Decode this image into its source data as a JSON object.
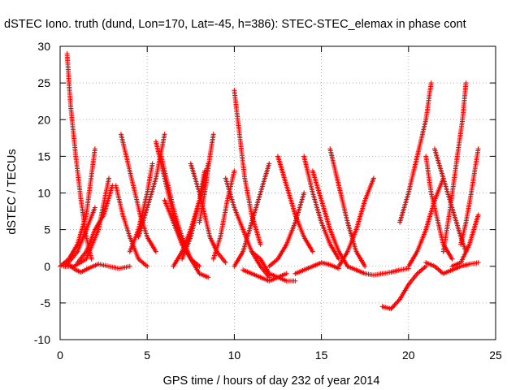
{
  "chart_data": {
    "type": "scatter",
    "title": "dSTEC Iono. truth (dund, Lon=170, Lat=-45, h=386): STEC-STEC_elemax in phase cont",
    "xlabel": "GPS time / hours of day 232 of year 2014",
    "ylabel": "dSTEC  / TECUs",
    "xlim": [
      0,
      25
    ],
    "ylim": [
      -10,
      30
    ],
    "xticks": [
      0,
      5,
      10,
      15,
      20,
      25
    ],
    "yticks": [
      -10,
      -5,
      0,
      5,
      10,
      15,
      20,
      25,
      30
    ],
    "grid": true,
    "marker": "plus",
    "color": "#ff0000",
    "series": [
      {
        "x": [
          0.4,
          0.6,
          0.9,
          1.2,
          1.5,
          1.8
        ],
        "y": [
          29,
          22,
          15,
          9,
          4,
          1
        ]
      },
      {
        "x": [
          0.0,
          0.5,
          1.0,
          1.5,
          2.0
        ],
        "y": [
          0,
          1,
          3,
          7,
          16
        ]
      },
      {
        "x": [
          0.2,
          0.8,
          1.5,
          2.2,
          2.8
        ],
        "y": [
          0,
          0,
          1,
          5,
          12
        ]
      },
      {
        "x": [
          0.3,
          1.0,
          1.5,
          2.0
        ],
        "y": [
          0,
          2,
          5,
          8
        ]
      },
      {
        "x": [
          1.0,
          1.5,
          2.0,
          2.5,
          3.0
        ],
        "y": [
          0.5,
          2,
          5,
          7,
          11
        ]
      },
      {
        "x": [
          0.5,
          0.9,
          1.2,
          1.6,
          2.2,
          2.8,
          3.4,
          4.0
        ],
        "y": [
          0.2,
          -0.5,
          -0.8,
          -0.3,
          0.3,
          0.0,
          -0.3,
          0.0
        ]
      },
      {
        "x": [
          3.5,
          3.8,
          4.2,
          4.6,
          5.0,
          5.5
        ],
        "y": [
          18,
          15,
          11,
          7,
          4,
          2
        ]
      },
      {
        "x": [
          3.2,
          3.6,
          4.0,
          4.5,
          5.0
        ],
        "y": [
          11,
          7,
          4,
          1,
          0
        ]
      },
      {
        "x": [
          4.5,
          5.0,
          5.5,
          6.0
        ],
        "y": [
          4,
          8,
          12,
          18
        ]
      },
      {
        "x": [
          4.0,
          4.5,
          5.0,
          5.3
        ],
        "y": [
          2,
          5,
          10,
          14
        ]
      },
      {
        "x": [
          5.5,
          6.0,
          6.5,
          7.0,
          7.5
        ],
        "y": [
          17,
          12,
          7,
          3,
          1
        ]
      },
      {
        "x": [
          5.8,
          6.2,
          6.6,
          7.0,
          7.5,
          8.0
        ],
        "y": [
          15,
          11,
          7,
          4,
          1,
          0
        ]
      },
      {
        "x": [
          6.0,
          6.5,
          7.0,
          7.5,
          8.0,
          8.5
        ],
        "y": [
          9,
          6,
          3,
          1,
          -1,
          -1.5
        ]
      },
      {
        "x": [
          6.5,
          7.0,
          7.5,
          8.0,
          8.5
        ],
        "y": [
          0,
          2,
          5,
          9,
          14
        ]
      },
      {
        "x": [
          7.0,
          7.5,
          8.0,
          8.3
        ],
        "y": [
          1,
          4,
          9,
          13
        ]
      },
      {
        "x": [
          8.0,
          8.3,
          8.6,
          8.8
        ],
        "y": [
          6,
          10,
          15,
          18
        ]
      },
      {
        "x": [
          7.5,
          8.0,
          8.3,
          8.6,
          9.0,
          9.5
        ],
        "y": [
          14,
          10,
          7,
          4,
          2,
          0.5
        ]
      },
      {
        "x": [
          8.8,
          9.2,
          9.6,
          10.0
        ],
        "y": [
          1,
          4,
          9,
          13
        ]
      },
      {
        "x": [
          10.0,
          10.3,
          10.6,
          11.0,
          11.5
        ],
        "y": [
          24,
          18,
          12,
          7,
          3
        ]
      },
      {
        "x": [
          9.5,
          10.0,
          10.5,
          11.0,
          11.5,
          12.0
        ],
        "y": [
          12,
          8,
          5,
          2,
          0,
          -1.5
        ]
      },
      {
        "x": [
          10.0,
          10.5,
          11.0,
          11.5,
          12.0
        ],
        "y": [
          0,
          2,
          6,
          10,
          14
        ]
      },
      {
        "x": [
          11.0,
          11.5,
          12.0,
          12.5,
          13.0,
          13.5
        ],
        "y": [
          2,
          1,
          -1,
          -1.5,
          -2,
          -2
        ]
      },
      {
        "x": [
          10.5,
          11.0,
          11.5,
          12.0,
          12.5,
          13.0
        ],
        "y": [
          -0.5,
          -1,
          -1.5,
          -2,
          -1.5,
          -1
        ]
      },
      {
        "x": [
          12.5,
          13.0,
          13.5,
          14.0,
          14.5
        ],
        "y": [
          15,
          11,
          7,
          4,
          2
        ]
      },
      {
        "x": [
          12.0,
          12.5,
          13.0,
          13.5,
          14.0
        ],
        "y": [
          0,
          1,
          3,
          6,
          10
        ]
      },
      {
        "x": [
          14.0,
          14.5,
          15.0,
          15.5,
          16.0
        ],
        "y": [
          15,
          10,
          6,
          3,
          1
        ]
      },
      {
        "x": [
          14.5,
          15.0,
          15.5,
          16.0,
          16.5
        ],
        "y": [
          13,
          9,
          5,
          2,
          0
        ]
      },
      {
        "x": [
          13.5,
          14.0,
          14.5,
          15.0,
          15.5,
          16.0
        ],
        "y": [
          -1,
          -0.5,
          0,
          0.5,
          0.2,
          -0.3
        ]
      },
      {
        "x": [
          15.5,
          16.0,
          16.5,
          17.0,
          17.5
        ],
        "y": [
          16,
          11,
          6,
          2,
          0
        ]
      },
      {
        "x": [
          16.0,
          16.5,
          17.0,
          17.5,
          18.0
        ],
        "y": [
          0,
          2,
          5,
          9,
          12
        ]
      },
      {
        "x": [
          16.5,
          17.0,
          17.5,
          18.0,
          18.5,
          19.0,
          19.5,
          20.0
        ],
        "y": [
          0,
          -0.5,
          -1,
          -1.2,
          -1,
          -0.8,
          -0.5,
          -0.3
        ]
      },
      {
        "x": [
          18.5,
          19.0,
          19.5,
          20.0,
          20.5,
          21.0
        ],
        "y": [
          -5.5,
          -5.8,
          -4.5,
          -2.5,
          -1,
          0
        ]
      },
      {
        "x": [
          19.5,
          20.0,
          20.5,
          21.0,
          21.3
        ],
        "y": [
          6,
          10,
          15,
          20,
          25
        ]
      },
      {
        "x": [
          20.0,
          20.5,
          21.0,
          21.5,
          22.0
        ],
        "y": [
          0,
          2,
          5,
          9,
          12
        ]
      },
      {
        "x": [
          21.0,
          21.3,
          21.7,
          22.0,
          22.5
        ],
        "y": [
          15,
          10,
          6,
          3,
          1
        ]
      },
      {
        "x": [
          21.5,
          22.0,
          22.5,
          23.0,
          23.3
        ],
        "y": [
          16,
          12,
          8,
          4,
          2
        ]
      },
      {
        "x": [
          22.0,
          22.4,
          22.8,
          23.1,
          23.3
        ],
        "y": [
          2,
          8,
          15,
          20,
          25
        ]
      },
      {
        "x": [
          23.0,
          23.3,
          23.6,
          24.0
        ],
        "y": [
          3,
          6,
          10,
          16
        ]
      },
      {
        "x": [
          22.5,
          23.0,
          23.5,
          24.0
        ],
        "y": [
          0,
          0.5,
          3,
          7
        ]
      },
      {
        "x": [
          21.0,
          21.5,
          22.0,
          22.5,
          23.0,
          23.5,
          24.0
        ],
        "y": [
          0.5,
          0,
          -1,
          -0.5,
          0,
          0.3,
          0.5
        ]
      }
    ]
  }
}
